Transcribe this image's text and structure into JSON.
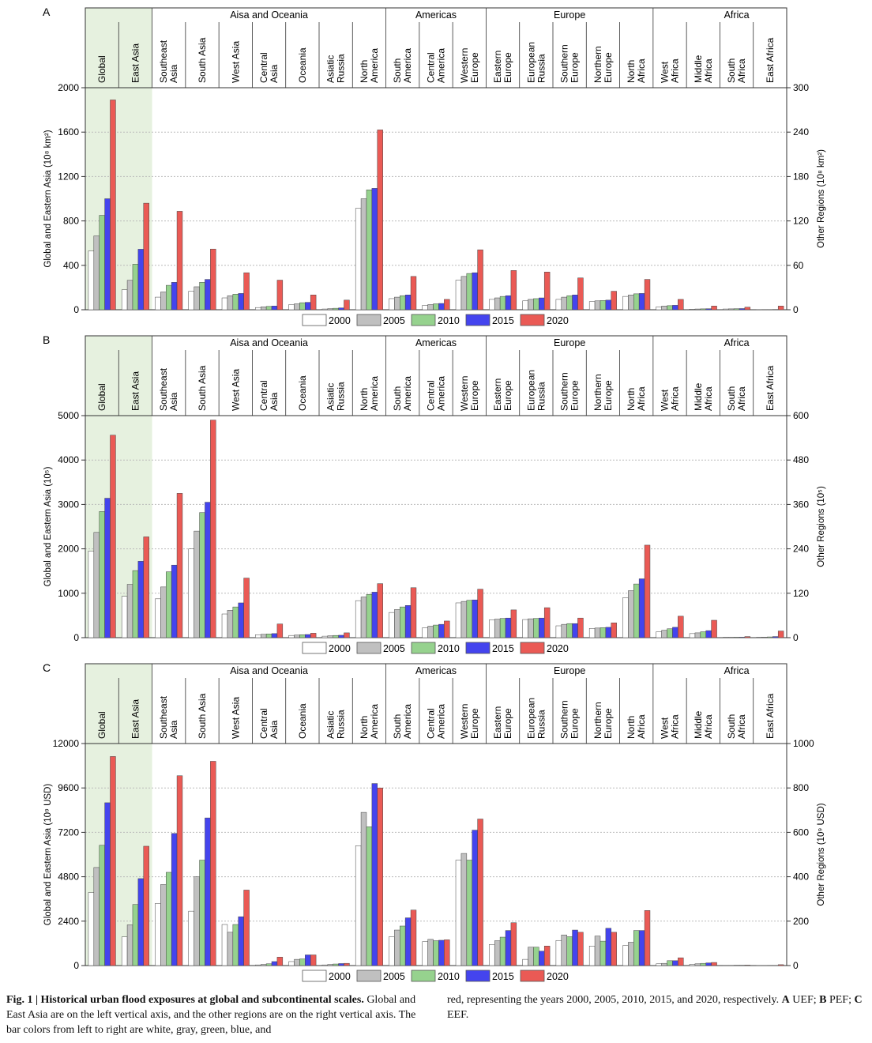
{
  "colors": {
    "bar_2000": "#ffffff",
    "bar_2005": "#c0c0c0",
    "bar_2010": "#96d28e",
    "bar_2015": "#4444ee",
    "bar_2020": "#ea5a55",
    "highlight": "#e6f1df",
    "grid": "#bbbbbb"
  },
  "chart_data": [
    {
      "type": "bar",
      "panel_label": "A",
      "years": [
        "2000",
        "2005",
        "2010",
        "2015",
        "2020"
      ],
      "left_axis": {
        "label": "Global and Eastern Asia (10⁸ km²)",
        "ylim": [
          0,
          2000
        ],
        "ticks": [
          "0",
          "400",
          "800",
          "1200",
          "1600",
          "2000"
        ]
      },
      "right_axis": {
        "label": "Other Regions (10⁸ km²)",
        "ylim": [
          0,
          300
        ],
        "ticks": [
          "0",
          "60",
          "120",
          "180",
          "240",
          "300"
        ]
      },
      "groups": [
        {
          "label": "",
          "span": [
            0,
            1
          ]
        },
        {
          "label": "Aisa and Oceania",
          "span": [
            2,
            8
          ]
        },
        {
          "label": "Americas",
          "span": [
            9,
            11
          ]
        },
        {
          "label": "Europe",
          "span": [
            12,
            16
          ]
        },
        {
          "label": "Africa",
          "span": [
            17,
            21
          ]
        }
      ],
      "categories": [
        {
          "label": "Global",
          "axis": "left",
          "values": [
            530,
            665,
            850,
            1000,
            1890
          ]
        },
        {
          "label": "East Asia",
          "axis": "left",
          "values": [
            180,
            265,
            410,
            545,
            960
          ]
        },
        {
          "label": "Southeast Asia",
          "axis": "right",
          "values": [
            17,
            24,
            33,
            37,
            133
          ]
        },
        {
          "label": "South Asia",
          "axis": "right",
          "values": [
            25,
            31,
            37,
            41,
            82
          ]
        },
        {
          "label": "West Asia",
          "axis": "right",
          "values": [
            16,
            19,
            21,
            22,
            50
          ]
        },
        {
          "label": "Central Asia",
          "axis": "right",
          "values": [
            3,
            4,
            4.5,
            5,
            40
          ]
        },
        {
          "label": "Oceania",
          "axis": "right",
          "values": [
            7,
            8,
            9.5,
            10,
            20
          ]
        },
        {
          "label": "Asiatic Russia",
          "axis": "right",
          "values": [
            1,
            1.5,
            2,
            2.5,
            13
          ]
        },
        {
          "label": "North America",
          "axis": "right",
          "values": [
            137,
            150,
            162,
            164,
            243
          ]
        },
        {
          "label": "South America",
          "axis": "right",
          "values": [
            15,
            17,
            19,
            20,
            45
          ]
        },
        {
          "label": "Central America",
          "axis": "right",
          "values": [
            6,
            7,
            8,
            8.5,
            14
          ]
        },
        {
          "label": "Western Europe",
          "axis": "right",
          "values": [
            40,
            45,
            49,
            50,
            81
          ]
        },
        {
          "label": "Eastern Europe",
          "axis": "right",
          "values": [
            14,
            16,
            18,
            19,
            53
          ]
        },
        {
          "label": "European Russia",
          "axis": "right",
          "values": [
            12,
            14,
            15,
            16,
            51
          ]
        },
        {
          "label": "Southern Europe",
          "axis": "right",
          "values": [
            14,
            17,
            19,
            20,
            43
          ]
        },
        {
          "label": "Northern Europe",
          "axis": "right",
          "values": [
            11,
            12,
            12.5,
            13,
            25
          ]
        },
        {
          "label": "North Africa",
          "axis": "right",
          "values": [
            18,
            20,
            21.5,
            22,
            41
          ]
        },
        {
          "label": "West Africa",
          "axis": "right",
          "values": [
            4,
            5,
            5.5,
            6,
            14
          ]
        },
        {
          "label": "Middle Africa",
          "axis": "right",
          "values": [
            0.8,
            1,
            1.2,
            1.4,
            5
          ]
        },
        {
          "label": "South Africa",
          "axis": "right",
          "values": [
            1,
            1.2,
            1.4,
            1.6,
            3.5
          ]
        },
        {
          "label": "East Africa",
          "axis": "right",
          "values": [
            0.2,
            0.3,
            0.3,
            0.4,
            5
          ]
        }
      ]
    },
    {
      "type": "bar",
      "panel_label": "B",
      "years": [
        "2000",
        "2005",
        "2010",
        "2015",
        "2020"
      ],
      "left_axis": {
        "label": "Global and Eastern Asia (10⁵)",
        "ylim": [
          0,
          5000
        ],
        "ticks": [
          "0",
          "1000",
          "2000",
          "3000",
          "4000",
          "5000"
        ]
      },
      "right_axis": {
        "label": "Other Regions (10⁵)",
        "ylim": [
          0,
          600
        ],
        "ticks": [
          "0",
          "120",
          "240",
          "360",
          "480",
          "600"
        ]
      },
      "groups": [
        {
          "label": "",
          "span": [
            0,
            1
          ]
        },
        {
          "label": "Aisa and Oceania",
          "span": [
            2,
            8
          ]
        },
        {
          "label": "Americas",
          "span": [
            9,
            11
          ]
        },
        {
          "label": "Europe",
          "span": [
            12,
            16
          ]
        },
        {
          "label": "Africa",
          "span": [
            17,
            21
          ]
        }
      ],
      "categories": [
        {
          "label": "Global",
          "axis": "left",
          "values": [
            1950,
            2370,
            2840,
            3140,
            4560
          ]
        },
        {
          "label": "East Asia",
          "axis": "left",
          "values": [
            930,
            1200,
            1510,
            1720,
            2270
          ]
        },
        {
          "label": "Southeast Asia",
          "axis": "right",
          "values": [
            105,
            137,
            178,
            196,
            390
          ]
        },
        {
          "label": "South Asia",
          "axis": "right",
          "values": [
            240,
            288,
            338,
            366,
            588
          ]
        },
        {
          "label": "West Asia",
          "axis": "right",
          "values": [
            64,
            74,
            83,
            94,
            161
          ]
        },
        {
          "label": "Central Asia",
          "axis": "right",
          "values": [
            8,
            9,
            10,
            11,
            37
          ]
        },
        {
          "label": "Oceania",
          "axis": "right",
          "values": [
            6,
            7,
            8,
            8.5,
            12
          ]
        },
        {
          "label": "Asiatic Russia",
          "axis": "right",
          "values": [
            4,
            5,
            6,
            6.5,
            13
          ]
        },
        {
          "label": "North America",
          "axis": "right",
          "values": [
            100,
            110,
            117,
            123,
            146
          ]
        },
        {
          "label": "South America",
          "axis": "right",
          "values": [
            68,
            76,
            83,
            87,
            135
          ]
        },
        {
          "label": "Central America",
          "axis": "right",
          "values": [
            27,
            31,
            34,
            36,
            45
          ]
        },
        {
          "label": "Western Europe",
          "axis": "right",
          "values": [
            94,
            98,
            101,
            102,
            131
          ]
        },
        {
          "label": "Eastern Europe",
          "axis": "right",
          "values": [
            48,
            50,
            52,
            53,
            75
          ]
        },
        {
          "label": "European Russia",
          "axis": "right",
          "values": [
            49,
            51,
            52,
            53,
            81
          ]
        },
        {
          "label": "Southern Europe",
          "axis": "right",
          "values": [
            32,
            36,
            38,
            38,
            53
          ]
        },
        {
          "label": "Northern Europe",
          "axis": "right",
          "values": [
            25,
            26,
            27,
            28,
            40
          ]
        },
        {
          "label": "North Africa",
          "axis": "right",
          "values": [
            108,
            127,
            145,
            159,
            250
          ]
        },
        {
          "label": "West Africa",
          "axis": "right",
          "values": [
            16,
            20,
            24,
            28,
            58
          ]
        },
        {
          "label": "Middle Africa",
          "axis": "right",
          "values": [
            11,
            13,
            16,
            19,
            47
          ]
        },
        {
          "label": "South Africa",
          "axis": "right",
          "values": [
            1,
            1,
            1.2,
            1.3,
            3
          ]
        },
        {
          "label": "East Africa",
          "axis": "right",
          "values": [
            1,
            1.5,
            2,
            3,
            18
          ]
        }
      ]
    },
    {
      "type": "bar",
      "panel_label": "C",
      "years": [
        "2000",
        "2005",
        "2010",
        "2015",
        "2020"
      ],
      "left_axis": {
        "label": "Global and Eastern Asia (10⁹ USD)",
        "ylim": [
          0,
          12000
        ],
        "ticks": [
          "0",
          "2400",
          "4800",
          "7200",
          "9600",
          "12000"
        ]
      },
      "right_axis": {
        "label": "Other Regions (10⁹ USD)",
        "ylim": [
          0,
          1000
        ],
        "ticks": [
          "0",
          "200",
          "400",
          "600",
          "800",
          "1000"
        ]
      },
      "groups": [
        {
          "label": "",
          "span": [
            0,
            1
          ]
        },
        {
          "label": "Aisa and Oceania",
          "span": [
            2,
            8
          ]
        },
        {
          "label": "Americas",
          "span": [
            9,
            11
          ]
        },
        {
          "label": "Europe",
          "span": [
            12,
            16
          ]
        },
        {
          "label": "Africa",
          "span": [
            17,
            21
          ]
        }
      ],
      "categories": [
        {
          "label": "Global",
          "axis": "left",
          "values": [
            3950,
            5300,
            6500,
            8800,
            11300
          ]
        },
        {
          "label": "East Asia",
          "axis": "left",
          "values": [
            1550,
            2200,
            3300,
            4700,
            6450
          ]
        },
        {
          "label": "Southeast Asia",
          "axis": "right",
          "values": [
            280,
            365,
            420,
            595,
            855
          ]
        },
        {
          "label": "South Asia",
          "axis": "right",
          "values": [
            245,
            400,
            475,
            665,
            920
          ]
        },
        {
          "label": "West Asia",
          "axis": "right",
          "values": [
            185,
            150,
            185,
            220,
            340
          ]
        },
        {
          "label": "Central Asia",
          "axis": "right",
          "values": [
            3,
            5,
            8,
            18,
            38
          ]
        },
        {
          "label": "Oceania",
          "axis": "right",
          "values": [
            18,
            28,
            30,
            48,
            48
          ]
        },
        {
          "label": "Asiatic Russia",
          "axis": "right",
          "values": [
            3,
            5,
            7,
            9,
            10
          ]
        },
        {
          "label": "North America",
          "axis": "right",
          "values": [
            540,
            690,
            625,
            820,
            800
          ]
        },
        {
          "label": "South America",
          "axis": "right",
          "values": [
            130,
            160,
            178,
            215,
            250
          ]
        },
        {
          "label": "Central America",
          "axis": "right",
          "values": [
            108,
            118,
            112,
            114,
            116
          ]
        },
        {
          "label": "Western Europe",
          "axis": "right",
          "values": [
            475,
            505,
            475,
            610,
            660
          ]
        },
        {
          "label": "Eastern Europe",
          "axis": "right",
          "values": [
            95,
            112,
            128,
            158,
            193
          ]
        },
        {
          "label": "European Russia",
          "axis": "right",
          "values": [
            28,
            83,
            83,
            65,
            88
          ]
        },
        {
          "label": "Southern Europe",
          "axis": "right",
          "values": [
            113,
            138,
            130,
            160,
            150
          ]
        },
        {
          "label": "Northern Europe",
          "axis": "right",
          "values": [
            88,
            133,
            110,
            168,
            150
          ]
        },
        {
          "label": "North Africa",
          "axis": "right",
          "values": [
            90,
            105,
            158,
            158,
            248
          ]
        },
        {
          "label": "West Africa",
          "axis": "right",
          "values": [
            8,
            10,
            22,
            22,
            35
          ]
        },
        {
          "label": "Middle Africa",
          "axis": "right",
          "values": [
            6,
            8,
            10,
            12,
            14
          ]
        },
        {
          "label": "South Africa",
          "axis": "right",
          "values": [
            1,
            1,
            1.5,
            1.5,
            2
          ]
        },
        {
          "label": "East Africa",
          "axis": "right",
          "values": [
            0.5,
            0.5,
            1,
            1,
            4
          ]
        }
      ]
    }
  ],
  "caption": {
    "title": "Fig. 1 | Historical urban flood exposures at global and subcontinental scales.",
    "body_left": "Global and East Asia are on the left vertical axis, and the other regions are on the right vertical axis. The bar colors from left to right are white, gray, green, blue, and",
    "body_right_1": "red, representing the years 2000, 2005, 2010, 2015, and 2020, respectively.",
    "label_a": "A",
    "text_a": "UEF;",
    "label_b": "B",
    "text_b": "PEF;",
    "label_c": "C",
    "text_c": "EEF."
  }
}
